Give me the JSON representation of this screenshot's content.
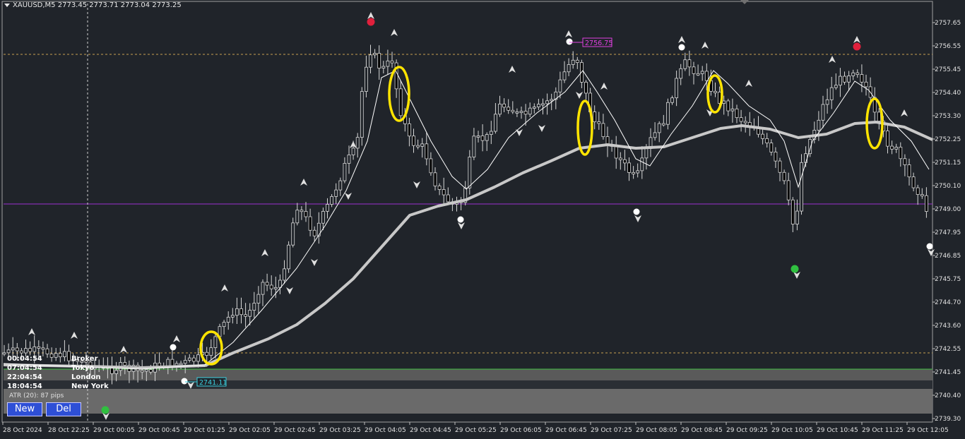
{
  "header": {
    "symbol": "XAUUSD,M5",
    "ohlc": "2773.45 2773.71 2773.04 2773.25"
  },
  "price_axis": {
    "labels": [
      "2757.65",
      "2756.55",
      "2755.45",
      "2754.40",
      "2753.30",
      "2752.25",
      "2751.15",
      "2750.10",
      "2749.00",
      "2747.95",
      "2746.85",
      "2745.75",
      "2744.70",
      "2743.60",
      "2742.55",
      "2741.45",
      "2740.40",
      "2739.30"
    ]
  },
  "time_axis": {
    "labels": [
      "28 Oct 2024",
      "28 Oct 22:25",
      "29 Oct 00:05",
      "29 Oct 00:45",
      "29 Oct 01:25",
      "29 Oct 02:05",
      "29 Oct 02:45",
      "29 Oct 03:25",
      "29 Oct 04:05",
      "29 Oct 04:45",
      "29 Oct 05:25",
      "29 Oct 06:05",
      "29 Oct 06:45",
      "29 Oct 07:25",
      "29 Oct 08:05",
      "29 Oct 08:45",
      "29 Oct 09:25",
      "29 Oct 10:05",
      "29 Oct 10:45",
      "29 Oct 11:25",
      "29 Oct 12:05"
    ]
  },
  "price_tags": [
    {
      "text": "2756.75",
      "color": "#e040e0"
    },
    {
      "text": "2741.11",
      "color": "#3ad0e0"
    }
  ],
  "sessions": [
    {
      "time": "00:04:54",
      "name": "Broker"
    },
    {
      "time": "07:04:54",
      "name": "Tokyo"
    },
    {
      "time": "22:04:54",
      "name": "London"
    },
    {
      "time": "18:04:54",
      "name": "New York"
    }
  ],
  "atr_label": "ATR (20): 87 pips",
  "buttons": {
    "new": "New",
    "del": "Del"
  },
  "colors": {
    "background": "#20242a",
    "grid_line": "#c8a050",
    "purple_line": "#9b30d0",
    "slow_ma": "#c8c8c8",
    "fast_ma": "#ffffff",
    "highlight": "#ffe400",
    "top_marker": "#e0203c",
    "bottom_marker": "#30c040"
  }
}
